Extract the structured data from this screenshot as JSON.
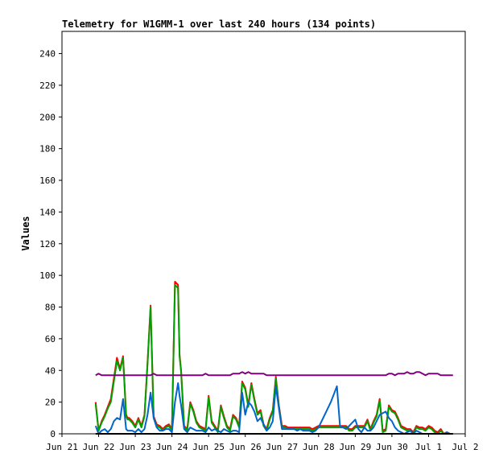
{
  "chart_data": {
    "type": "line",
    "title": "Telemetry for W1GMM-1 over last 240 hours (134 points)",
    "xlabel": "",
    "ylabel": "Values",
    "x_axis": {
      "unit": "hours",
      "range": [
        0,
        264
      ],
      "tick_labels": [
        "Jun 21",
        "Jun 22",
        "Jun 23",
        "Jun 24",
        "Jun 25",
        "Jun 26",
        "Jun 27",
        "Jun 28",
        "Jun 29",
        "Jun 30",
        "Jul 1",
        "Jul 2"
      ],
      "tick_values": [
        0,
        24,
        48,
        72,
        96,
        120,
        144,
        168,
        192,
        216,
        240,
        264
      ]
    },
    "ylim": [
      0,
      254
    ],
    "y_ticks": [
      0,
      20,
      40,
      60,
      80,
      100,
      120,
      140,
      160,
      180,
      200,
      220,
      240
    ],
    "grid": false,
    "legend": "none",
    "series": [
      {
        "color": "#ff0000",
        "x": [
          22,
          24,
          26,
          28,
          30,
          32,
          34,
          36,
          38,
          40,
          42,
          43,
          44,
          46,
          48,
          50,
          52,
          54,
          56,
          58,
          60,
          62,
          64,
          66,
          68,
          70,
          72,
          74,
          76,
          77,
          78,
          80,
          82,
          84,
          86,
          88,
          90,
          92,
          94,
          96,
          98,
          100,
          102,
          104,
          106,
          108,
          110,
          112,
          114,
          116,
          118,
          120,
          122,
          124,
          126,
          128,
          130,
          132,
          134,
          136,
          138,
          140,
          142,
          144,
          146,
          148,
          150,
          152,
          154,
          156,
          158,
          160,
          162,
          164,
          166,
          168,
          170,
          172,
          174,
          176,
          178,
          180,
          182,
          184,
          186,
          188,
          190,
          192,
          194,
          196,
          198,
          200,
          202,
          204,
          206,
          208,
          210,
          212,
          214,
          216,
          218,
          220,
          222,
          224,
          226,
          228,
          230,
          232,
          234,
          236,
          238,
          240,
          242,
          244,
          246,
          248,
          250,
          252,
          254,
          256
        ],
        "y": [
          20,
          2,
          8,
          12,
          17,
          22,
          35,
          48,
          41,
          49,
          12,
          10,
          10,
          8,
          5,
          10,
          5,
          12,
          45,
          81,
          11,
          6,
          5,
          3,
          5,
          6,
          3,
          96,
          94,
          50,
          40,
          5,
          3,
          20,
          15,
          8,
          5,
          4,
          3,
          24,
          8,
          5,
          2,
          18,
          11,
          5,
          3,
          12,
          10,
          5,
          33,
          29,
          18,
          32,
          22,
          13,
          15,
          6,
          3,
          10,
          15,
          36,
          18,
          5,
          5,
          4,
          4,
          4,
          4,
          4,
          4,
          4,
          4,
          3,
          4,
          5,
          5,
          5,
          5,
          5,
          5,
          5,
          5,
          5,
          5,
          3,
          3,
          5,
          5,
          5,
          5,
          9,
          3,
          8,
          12,
          22,
          2,
          3,
          18,
          15,
          14,
          10,
          5,
          4,
          3,
          3,
          1,
          5,
          4,
          4,
          3,
          5,
          4,
          2,
          1,
          3,
          0,
          1,
          0,
          0
        ]
      },
      {
        "color": "#00a000",
        "x": [
          22,
          24,
          26,
          28,
          30,
          32,
          34,
          36,
          38,
          40,
          42,
          43,
          44,
          46,
          48,
          50,
          52,
          54,
          56,
          58,
          60,
          62,
          64,
          66,
          68,
          70,
          72,
          74,
          76,
          77,
          78,
          80,
          82,
          84,
          86,
          88,
          90,
          92,
          94,
          96,
          98,
          100,
          102,
          104,
          106,
          108,
          110,
          112,
          114,
          116,
          118,
          120,
          122,
          124,
          126,
          128,
          130,
          132,
          134,
          136,
          138,
          140,
          142,
          144,
          146,
          148,
          150,
          152,
          154,
          156,
          158,
          160,
          162,
          164,
          166,
          168,
          170,
          172,
          174,
          176,
          178,
          180,
          182,
          184,
          186,
          188,
          190,
          192,
          194,
          196,
          198,
          200,
          202,
          204,
          206,
          208,
          210,
          212,
          214,
          216,
          218,
          220,
          222,
          224,
          226,
          228,
          230,
          232,
          234,
          236,
          238,
          240,
          242,
          244,
          246,
          248,
          250,
          252,
          254,
          256
        ],
        "y": [
          19,
          2,
          7,
          11,
          16,
          20,
          33,
          46,
          40,
          48,
          11,
          9,
          9,
          7,
          4,
          9,
          4,
          11,
          44,
          80,
          10,
          5,
          4,
          2,
          4,
          5,
          2,
          94,
          92,
          49,
          39,
          4,
          2,
          19,
          14,
          7,
          4,
          3,
          2,
          23,
          7,
          4,
          1,
          17,
          10,
          4,
          2,
          11,
          9,
          4,
          32,
          28,
          17,
          31,
          21,
          12,
          14,
          5,
          2,
          9,
          14,
          35,
          17,
          4,
          4,
          3,
          3,
          3,
          3,
          3,
          3,
          3,
          3,
          2,
          3,
          4,
          4,
          4,
          4,
          4,
          4,
          4,
          4,
          4,
          4,
          2,
          2,
          4,
          4,
          4,
          4,
          8,
          2,
          7,
          11,
          21,
          1,
          2,
          17,
          14,
          13,
          9,
          4,
          3,
          2,
          2,
          0,
          4,
          3,
          3,
          2,
          4,
          3,
          1,
          0,
          2,
          0,
          0,
          0,
          0
        ]
      },
      {
        "color": "#0066cc",
        "x": [
          22,
          24,
          26,
          28,
          30,
          32,
          34,
          36,
          38,
          40,
          42,
          43,
          44,
          46,
          48,
          50,
          52,
          54,
          56,
          58,
          60,
          62,
          64,
          66,
          68,
          70,
          72,
          74,
          76,
          77,
          78,
          80,
          82,
          84,
          86,
          88,
          90,
          92,
          94,
          96,
          98,
          100,
          102,
          104,
          106,
          108,
          110,
          112,
          114,
          116,
          118,
          120,
          122,
          124,
          126,
          128,
          130,
          132,
          134,
          136,
          138,
          140,
          142,
          144,
          146,
          148,
          150,
          152,
          154,
          156,
          158,
          160,
          162,
          164,
          166,
          168,
          170,
          172,
          174,
          176,
          178,
          180,
          182,
          184,
          186,
          188,
          190,
          192,
          194,
          196,
          198,
          200,
          202,
          204,
          206,
          208,
          210,
          212,
          214,
          216,
          218,
          220,
          222,
          224,
          226,
          228,
          230,
          232,
          234,
          236,
          238,
          240,
          242,
          244,
          246,
          248,
          250,
          252,
          254,
          256
        ],
        "y": [
          5,
          0,
          2,
          3,
          1,
          3,
          8,
          10,
          9,
          22,
          3,
          2,
          2,
          2,
          1,
          3,
          1,
          3,
          12,
          26,
          10,
          4,
          2,
          2,
          3,
          3,
          1,
          20,
          32,
          24,
          18,
          3,
          1,
          4,
          3,
          2,
          2,
          2,
          1,
          4,
          2,
          3,
          2,
          1,
          3,
          2,
          1,
          2,
          2,
          1,
          26,
          12,
          20,
          18,
          14,
          8,
          10,
          6,
          2,
          4,
          8,
          30,
          16,
          3,
          3,
          3,
          3,
          3,
          2,
          3,
          2,
          2,
          2,
          1,
          2,
          4,
          8,
          12,
          16,
          20,
          25,
          30,
          5,
          4,
          3,
          5,
          7,
          9,
          3,
          1,
          4,
          2,
          2,
          4,
          8,
          12,
          13,
          14,
          10,
          8,
          4,
          2,
          1,
          0,
          1,
          2,
          0,
          2,
          1,
          0,
          0,
          0,
          0,
          0,
          0,
          0,
          0,
          1,
          0,
          0
        ]
      },
      {
        "color": "#800080",
        "x": [
          22,
          24,
          26,
          28,
          30,
          32,
          34,
          36,
          38,
          40,
          42,
          44,
          46,
          48,
          50,
          52,
          54,
          56,
          58,
          60,
          62,
          64,
          66,
          68,
          70,
          72,
          74,
          76,
          78,
          80,
          82,
          84,
          86,
          88,
          90,
          92,
          94,
          96,
          98,
          100,
          102,
          104,
          106,
          108,
          110,
          112,
          114,
          116,
          118,
          120,
          122,
          124,
          126,
          128,
          130,
          132,
          134,
          136,
          138,
          140,
          142,
          144,
          146,
          148,
          150,
          152,
          154,
          156,
          158,
          160,
          162,
          164,
          166,
          168,
          170,
          172,
          174,
          176,
          178,
          180,
          182,
          184,
          186,
          188,
          190,
          192,
          194,
          196,
          198,
          200,
          202,
          204,
          206,
          208,
          210,
          212,
          214,
          216,
          218,
          220,
          222,
          224,
          226,
          228,
          230,
          232,
          234,
          236,
          238,
          240,
          242,
          244,
          246,
          248,
          250,
          252,
          254,
          256
        ],
        "y": [
          37,
          38,
          37,
          37,
          37,
          37,
          37,
          37,
          37,
          37,
          37,
          37,
          37,
          37,
          37,
          37,
          37,
          37,
          37,
          38,
          37,
          37,
          37,
          37,
          37,
          37,
          37,
          37,
          37,
          37,
          37,
          37,
          37,
          37,
          37,
          37,
          38,
          37,
          37,
          37,
          37,
          37,
          37,
          37,
          37,
          38,
          38,
          38,
          39,
          38,
          39,
          38,
          38,
          38,
          38,
          38,
          37,
          37,
          37,
          37,
          37,
          37,
          37,
          37,
          37,
          37,
          37,
          37,
          37,
          37,
          37,
          37,
          37,
          37,
          37,
          37,
          37,
          37,
          37,
          37,
          37,
          37,
          37,
          37,
          37,
          37,
          37,
          37,
          37,
          37,
          37,
          37,
          37,
          37,
          37,
          37,
          38,
          38,
          37,
          38,
          38,
          38,
          39,
          38,
          38,
          39,
          39,
          38,
          37,
          38,
          38,
          38,
          38,
          37,
          37,
          37,
          37,
          37
        ]
      },
      {
        "color": "#000000",
        "x": [
          22,
          256
        ],
        "y": [
          0,
          0
        ]
      }
    ]
  }
}
